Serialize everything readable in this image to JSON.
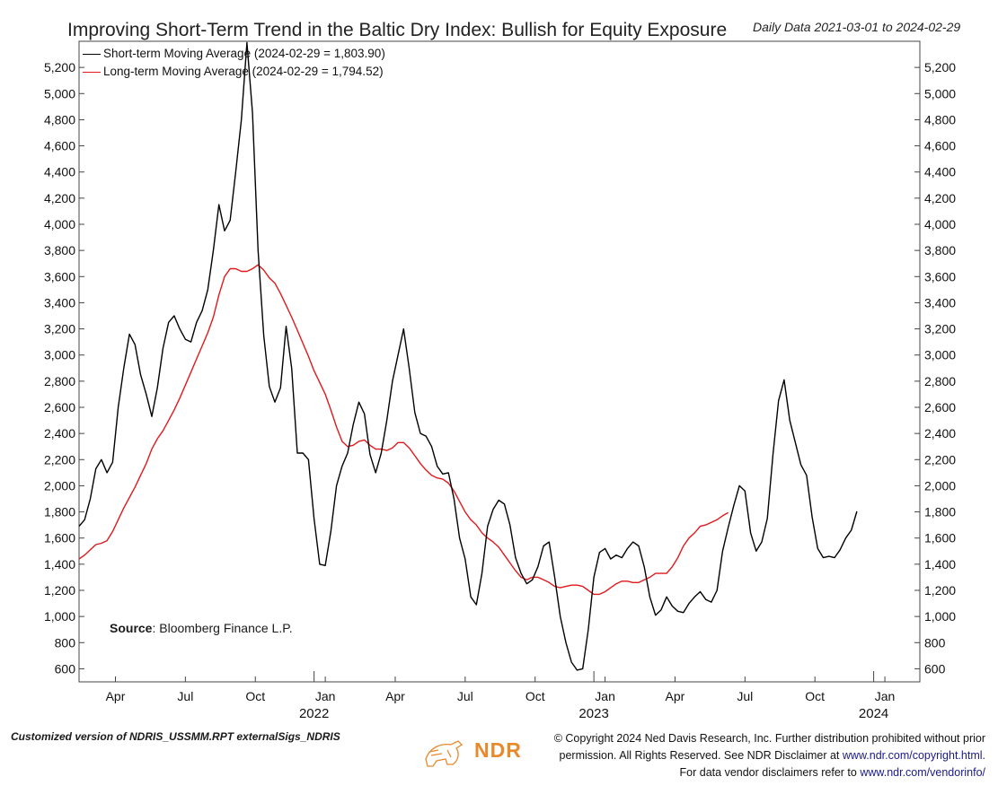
{
  "chart_data": {
    "type": "line",
    "title": "Improving Short-Term Trend in the Baltic Dry Index: Bullish for Equity Exposure",
    "subtitle": "Daily Data 2021-03-01 to 2024-02-29",
    "xlabel": "",
    "ylabel": "",
    "ylim": [
      500,
      5400
    ],
    "xlim": [
      2021.16,
      2024.165
    ],
    "yticks": [
      600,
      800,
      1000,
      1200,
      1400,
      1600,
      1800,
      2000,
      2200,
      2400,
      2600,
      2800,
      3000,
      3200,
      3400,
      3600,
      3800,
      4000,
      4200,
      4400,
      4600,
      4800,
      5000,
      5200
    ],
    "ytick_labels": [
      "600",
      "800",
      "1,000",
      "1,200",
      "1,400",
      "1,600",
      "1,800",
      "2,000",
      "2,200",
      "2,400",
      "2,600",
      "2,800",
      "3,000",
      "3,200",
      "3,400",
      "3,600",
      "3,800",
      "4,000",
      "4,200",
      "4,400",
      "4,600",
      "4,800",
      "5,000",
      "5,200"
    ],
    "xticks": [
      {
        "x": 2021.29,
        "label": "Apr"
      },
      {
        "x": 2021.54,
        "label": "Jul"
      },
      {
        "x": 2021.79,
        "label": "Oct"
      },
      {
        "x": 2022.04,
        "label": "Jan"
      },
      {
        "x": 2022.29,
        "label": "Apr"
      },
      {
        "x": 2022.54,
        "label": "Jul"
      },
      {
        "x": 2022.79,
        "label": "Oct"
      },
      {
        "x": 2023.04,
        "label": "Jan"
      },
      {
        "x": 2023.29,
        "label": "Apr"
      },
      {
        "x": 2023.54,
        "label": "Jul"
      },
      {
        "x": 2023.79,
        "label": "Oct"
      },
      {
        "x": 2024.04,
        "label": "Jan"
      }
    ],
    "year_labels": [
      {
        "x": 2022.0,
        "label": "2022"
      },
      {
        "x": 2023.0,
        "label": "2023"
      },
      {
        "x": 2024.0,
        "label": "2024"
      }
    ],
    "series": [
      {
        "name": "Short-term Moving Average (2024-02-29 = 1,803.90)",
        "color": "#000000",
        "points": [
          [
            2021.16,
            1690
          ],
          [
            2021.18,
            1740
          ],
          [
            2021.2,
            1900
          ],
          [
            2021.22,
            2130
          ],
          [
            2021.24,
            2200
          ],
          [
            2021.26,
            2100
          ],
          [
            2021.28,
            2180
          ],
          [
            2021.3,
            2600
          ],
          [
            2021.32,
            2900
          ],
          [
            2021.34,
            3160
          ],
          [
            2021.36,
            3080
          ],
          [
            2021.38,
            2850
          ],
          [
            2021.4,
            2700
          ],
          [
            2021.42,
            2530
          ],
          [
            2021.44,
            2750
          ],
          [
            2021.46,
            3050
          ],
          [
            2021.48,
            3250
          ],
          [
            2021.5,
            3300
          ],
          [
            2021.52,
            3200
          ],
          [
            2021.54,
            3120
          ],
          [
            2021.56,
            3100
          ],
          [
            2021.58,
            3250
          ],
          [
            2021.6,
            3340
          ],
          [
            2021.62,
            3500
          ],
          [
            2021.64,
            3800
          ],
          [
            2021.66,
            4150
          ],
          [
            2021.68,
            3950
          ],
          [
            2021.7,
            4030
          ],
          [
            2021.72,
            4400
          ],
          [
            2021.74,
            4800
          ],
          [
            2021.76,
            5390
          ],
          [
            2021.78,
            4850
          ],
          [
            2021.8,
            3800
          ],
          [
            2021.82,
            3150
          ],
          [
            2021.84,
            2760
          ],
          [
            2021.86,
            2640
          ],
          [
            2021.88,
            2750
          ],
          [
            2021.9,
            3220
          ],
          [
            2021.92,
            2900
          ],
          [
            2021.94,
            2250
          ],
          [
            2021.96,
            2250
          ],
          [
            2021.98,
            2200
          ],
          [
            2022.0,
            1750
          ],
          [
            2022.02,
            1400
          ],
          [
            2022.04,
            1390
          ],
          [
            2022.06,
            1650
          ],
          [
            2022.08,
            2000
          ],
          [
            2022.1,
            2150
          ],
          [
            2022.12,
            2250
          ],
          [
            2022.14,
            2470
          ],
          [
            2022.16,
            2640
          ],
          [
            2022.18,
            2550
          ],
          [
            2022.2,
            2240
          ],
          [
            2022.22,
            2100
          ],
          [
            2022.24,
            2250
          ],
          [
            2022.26,
            2500
          ],
          [
            2022.28,
            2800
          ],
          [
            2022.3,
            3000
          ],
          [
            2022.32,
            3200
          ],
          [
            2022.34,
            2900
          ],
          [
            2022.36,
            2560
          ],
          [
            2022.38,
            2400
          ],
          [
            2022.4,
            2380
          ],
          [
            2022.42,
            2300
          ],
          [
            2022.44,
            2150
          ],
          [
            2022.46,
            2090
          ],
          [
            2022.48,
            2100
          ],
          [
            2022.5,
            1900
          ],
          [
            2022.52,
            1600
          ],
          [
            2022.54,
            1440
          ],
          [
            2022.56,
            1150
          ],
          [
            2022.58,
            1090
          ],
          [
            2022.6,
            1330
          ],
          [
            2022.62,
            1690
          ],
          [
            2022.64,
            1820
          ],
          [
            2022.66,
            1890
          ],
          [
            2022.68,
            1860
          ],
          [
            2022.7,
            1700
          ],
          [
            2022.72,
            1450
          ],
          [
            2022.74,
            1330
          ],
          [
            2022.76,
            1250
          ],
          [
            2022.78,
            1280
          ],
          [
            2022.8,
            1380
          ],
          [
            2022.82,
            1540
          ],
          [
            2022.84,
            1570
          ],
          [
            2022.86,
            1300
          ],
          [
            2022.88,
            1000
          ],
          [
            2022.9,
            800
          ],
          [
            2022.92,
            650
          ],
          [
            2022.94,
            590
          ],
          [
            2022.96,
            600
          ],
          [
            2022.98,
            900
          ],
          [
            2023.0,
            1300
          ],
          [
            2023.02,
            1490
          ],
          [
            2023.04,
            1520
          ],
          [
            2023.06,
            1440
          ],
          [
            2023.08,
            1470
          ],
          [
            2023.1,
            1450
          ],
          [
            2023.12,
            1520
          ],
          [
            2023.14,
            1570
          ],
          [
            2023.16,
            1540
          ],
          [
            2023.18,
            1380
          ],
          [
            2023.2,
            1150
          ],
          [
            2023.22,
            1010
          ],
          [
            2023.24,
            1050
          ],
          [
            2023.26,
            1150
          ],
          [
            2023.28,
            1080
          ],
          [
            2023.3,
            1040
          ],
          [
            2023.32,
            1030
          ],
          [
            2023.34,
            1100
          ],
          [
            2023.36,
            1150
          ],
          [
            2023.38,
            1190
          ],
          [
            2023.4,
            1130
          ],
          [
            2023.42,
            1110
          ],
          [
            2023.44,
            1200
          ],
          [
            2023.46,
            1500
          ],
          [
            2023.48,
            1680
          ],
          [
            2023.5,
            1850
          ],
          [
            2023.52,
            2000
          ],
          [
            2023.54,
            1960
          ],
          [
            2023.56,
            1640
          ],
          [
            2023.58,
            1500
          ],
          [
            2023.6,
            1570
          ],
          [
            2023.62,
            1750
          ],
          [
            2023.64,
            2240
          ],
          [
            2023.66,
            2650
          ],
          [
            2023.68,
            2810
          ],
          [
            2023.7,
            2500
          ],
          [
            2023.72,
            2330
          ],
          [
            2023.74,
            2160
          ],
          [
            2023.76,
            2080
          ],
          [
            2023.78,
            1760
          ],
          [
            2023.8,
            1520
          ],
          [
            2023.82,
            1450
          ],
          [
            2023.84,
            1460
          ],
          [
            2023.86,
            1450
          ],
          [
            2023.88,
            1510
          ],
          [
            2023.9,
            1600
          ],
          [
            2023.92,
            1660
          ],
          [
            2023.94,
            1804
          ]
        ]
      },
      {
        "name": "Long-term Moving Average (2024-02-29 = 1,794.52)",
        "color": "#e0191c",
        "points": [
          [
            2021.16,
            1440
          ],
          [
            2021.18,
            1470
          ],
          [
            2021.2,
            1510
          ],
          [
            2021.22,
            1550
          ],
          [
            2021.24,
            1560
          ],
          [
            2021.26,
            1580
          ],
          [
            2021.28,
            1650
          ],
          [
            2021.3,
            1740
          ],
          [
            2021.32,
            1830
          ],
          [
            2021.34,
            1910
          ],
          [
            2021.36,
            1990
          ],
          [
            2021.38,
            2080
          ],
          [
            2021.4,
            2170
          ],
          [
            2021.42,
            2280
          ],
          [
            2021.44,
            2360
          ],
          [
            2021.46,
            2420
          ],
          [
            2021.48,
            2500
          ],
          [
            2021.5,
            2580
          ],
          [
            2021.52,
            2670
          ],
          [
            2021.54,
            2770
          ],
          [
            2021.56,
            2870
          ],
          [
            2021.58,
            2970
          ],
          [
            2021.6,
            3070
          ],
          [
            2021.62,
            3170
          ],
          [
            2021.64,
            3290
          ],
          [
            2021.66,
            3460
          ],
          [
            2021.68,
            3600
          ],
          [
            2021.7,
            3660
          ],
          [
            2021.72,
            3660
          ],
          [
            2021.74,
            3640
          ],
          [
            2021.76,
            3640
          ],
          [
            2021.78,
            3660
          ],
          [
            2021.8,
            3690
          ],
          [
            2021.82,
            3650
          ],
          [
            2021.84,
            3590
          ],
          [
            2021.86,
            3550
          ],
          [
            2021.88,
            3470
          ],
          [
            2021.9,
            3380
          ],
          [
            2021.92,
            3290
          ],
          [
            2021.94,
            3190
          ],
          [
            2021.96,
            3090
          ],
          [
            2021.98,
            2990
          ],
          [
            2022.0,
            2880
          ],
          [
            2022.02,
            2790
          ],
          [
            2022.04,
            2700
          ],
          [
            2022.06,
            2580
          ],
          [
            2022.08,
            2450
          ],
          [
            2022.1,
            2340
          ],
          [
            2022.12,
            2300
          ],
          [
            2022.14,
            2310
          ],
          [
            2022.16,
            2340
          ],
          [
            2022.18,
            2350
          ],
          [
            2022.2,
            2310
          ],
          [
            2022.22,
            2280
          ],
          [
            2022.24,
            2280
          ],
          [
            2022.26,
            2270
          ],
          [
            2022.28,
            2290
          ],
          [
            2022.3,
            2330
          ],
          [
            2022.32,
            2330
          ],
          [
            2022.34,
            2290
          ],
          [
            2022.36,
            2230
          ],
          [
            2022.38,
            2170
          ],
          [
            2022.4,
            2120
          ],
          [
            2022.42,
            2080
          ],
          [
            2022.44,
            2060
          ],
          [
            2022.46,
            2050
          ],
          [
            2022.48,
            2020
          ],
          [
            2022.5,
            1960
          ],
          [
            2022.52,
            1880
          ],
          [
            2022.54,
            1800
          ],
          [
            2022.56,
            1740
          ],
          [
            2022.58,
            1700
          ],
          [
            2022.6,
            1640
          ],
          [
            2022.62,
            1600
          ],
          [
            2022.64,
            1570
          ],
          [
            2022.66,
            1530
          ],
          [
            2022.68,
            1470
          ],
          [
            2022.7,
            1410
          ],
          [
            2022.72,
            1350
          ],
          [
            2022.74,
            1300
          ],
          [
            2022.76,
            1280
          ],
          [
            2022.78,
            1300
          ],
          [
            2022.8,
            1300
          ],
          [
            2022.82,
            1280
          ],
          [
            2022.84,
            1260
          ],
          [
            2022.86,
            1230
          ],
          [
            2022.88,
            1220
          ],
          [
            2022.9,
            1230
          ],
          [
            2022.92,
            1240
          ],
          [
            2022.94,
            1240
          ],
          [
            2022.96,
            1230
          ],
          [
            2022.98,
            1200
          ],
          [
            2023.0,
            1170
          ],
          [
            2023.02,
            1170
          ],
          [
            2023.04,
            1190
          ],
          [
            2023.06,
            1220
          ],
          [
            2023.08,
            1250
          ],
          [
            2023.1,
            1270
          ],
          [
            2023.12,
            1270
          ],
          [
            2023.14,
            1260
          ],
          [
            2023.16,
            1260
          ],
          [
            2023.18,
            1280
          ],
          [
            2023.2,
            1300
          ],
          [
            2023.22,
            1330
          ],
          [
            2023.24,
            1330
          ],
          [
            2023.26,
            1330
          ],
          [
            2023.28,
            1380
          ],
          [
            2023.3,
            1450
          ],
          [
            2023.32,
            1540
          ],
          [
            2023.34,
            1600
          ],
          [
            2023.36,
            1640
          ],
          [
            2023.38,
            1690
          ],
          [
            2023.4,
            1700
          ],
          [
            2023.42,
            1720
          ],
          [
            2023.44,
            1740
          ],
          [
            2023.46,
            1770
          ],
          [
            2023.48,
            1794
          ]
        ]
      }
    ],
    "legend": [
      "Short-term Moving Average (2024-02-29 = 1,803.90)",
      "Long-term Moving Average (2024-02-29 = 1,794.52)"
    ],
    "legend_position": "top-left",
    "grid": false
  },
  "source_label": "Source",
  "source_text": ": Bloomberg Finance L.P.",
  "footer_left": "Customized version of NDRIS_USSMM.RPT externalSigs_NDRIS",
  "footer_right": {
    "line1": "© Copyright 2024 Ned Davis Research, Inc. Further distribution prohibited without prior",
    "line2_text": "permission. All Rights Reserved. See NDR Disclaimer at",
    "line2_link": "www.ndr.com/copyright.html.",
    "line3_text": "For data vendor disclaimers refer to",
    "line3_link": "www.ndr.com/vendorinfo/"
  },
  "logo_text": "NDR",
  "colors": {
    "short_term": "#000000",
    "long_term": "#e0191c",
    "logo": "#e8892c"
  }
}
